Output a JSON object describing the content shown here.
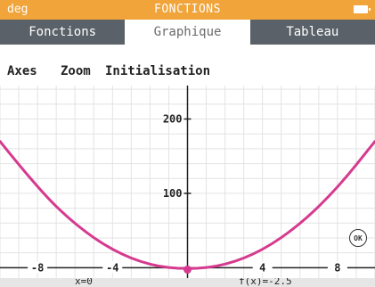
{
  "status_bar": {
    "mode": "deg",
    "title": "FONCTIONS"
  },
  "tabs": [
    {
      "label": "Fonctions",
      "active": false
    },
    {
      "label": "Graphique",
      "active": true
    },
    {
      "label": "Tableau",
      "active": false
    }
  ],
  "menu": {
    "axes": "Axes",
    "zoom": "Zoom",
    "reset": "Initialisation"
  },
  "cursor": {
    "x_label": "x=0",
    "fx_label": "f(x)=-2.5",
    "x": 0,
    "y": -2.5
  },
  "ok_button": "OK",
  "colors": {
    "curve": "#d63a8f",
    "header": "#f0a43a",
    "tabs": "#5a6168",
    "grid": "#e3e3e3"
  },
  "chart_data": {
    "type": "line",
    "title": "",
    "xlabel": "",
    "ylabel": "",
    "xlim": [
      -10.0,
      10.0
    ],
    "ylim": [
      -14,
      245
    ],
    "x_ticks": [
      -8,
      -4,
      4,
      8
    ],
    "y_ticks": [
      100,
      200
    ],
    "grid": true,
    "series": [
      {
        "x": [
          -10,
          -8,
          -6,
          -4,
          -2,
          0,
          2,
          4,
          6,
          8,
          10
        ],
        "values": [
          170,
          107,
          58,
          23,
          3,
          -2.5,
          3,
          23,
          58,
          107,
          170
        ]
      }
    ]
  }
}
